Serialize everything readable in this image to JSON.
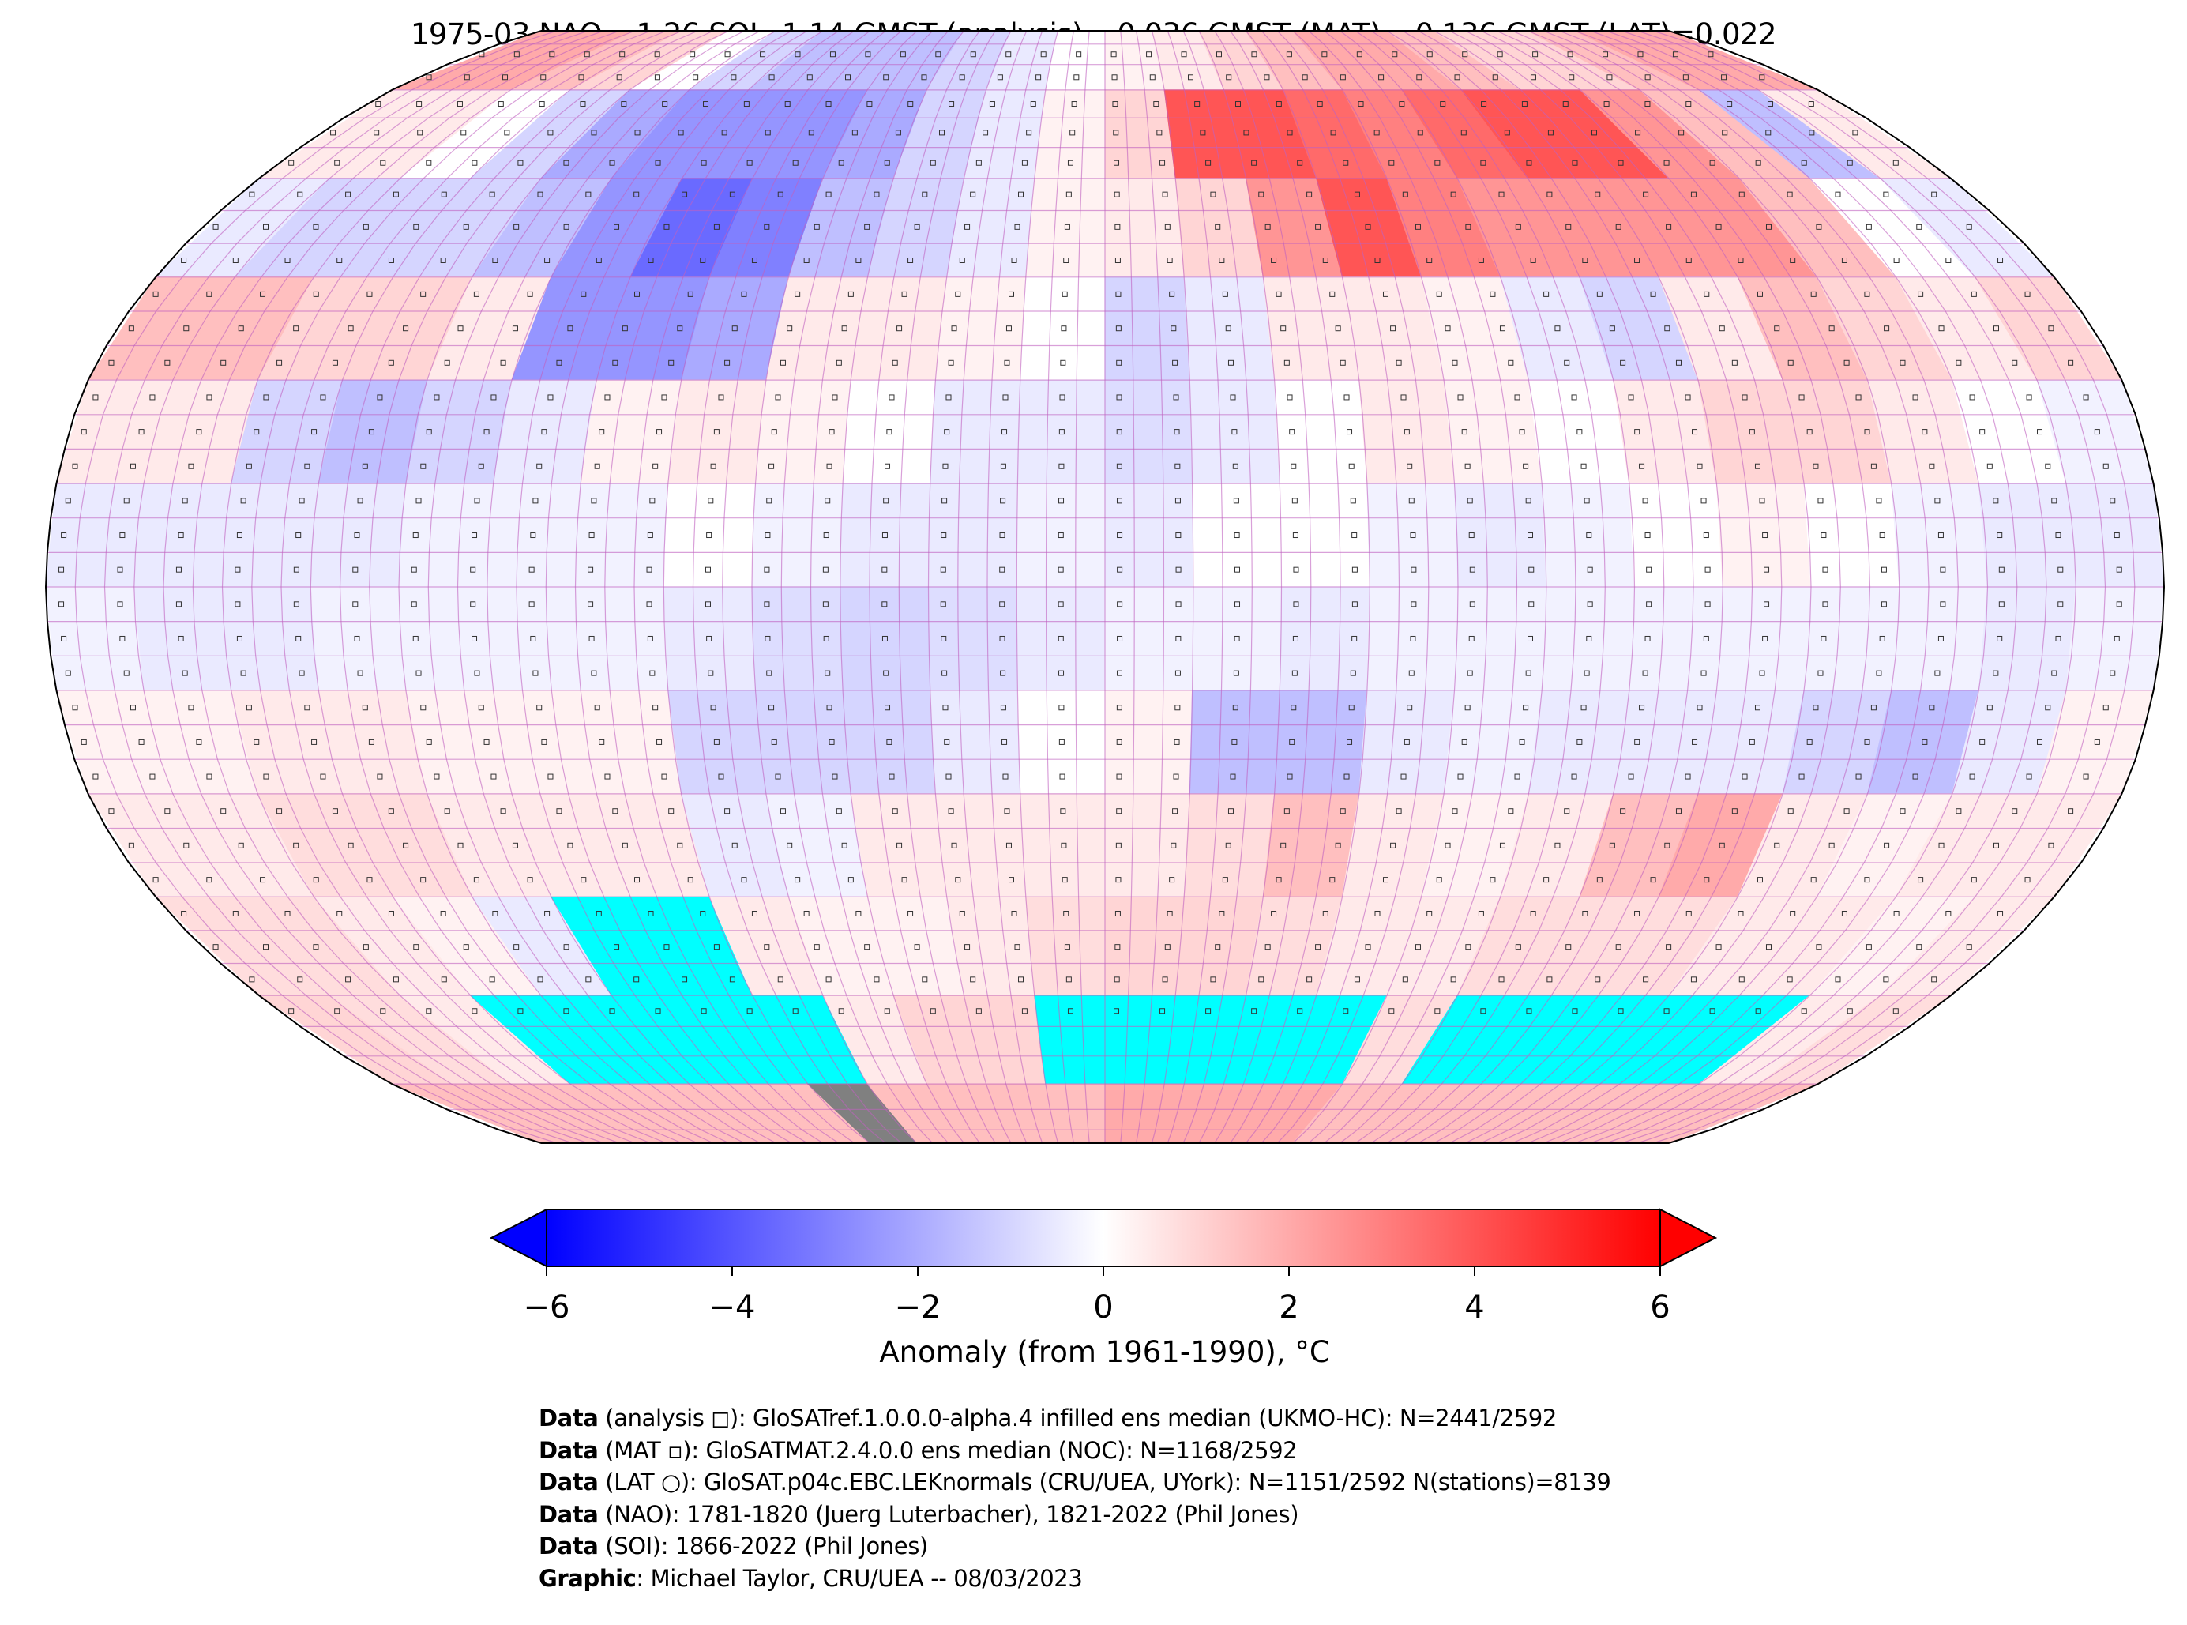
{
  "title": "1975-03 NAO=-1.26 SOI=1.14 GMST (analysis)=-0.036 GMST (MAT)=-0.136 GMST (LAT)=0.022",
  "chart_data": {
    "type": "heatmap",
    "projection": "Robinson",
    "title": "1975-03 NAO=-1.26 SOI=1.14 GMST (analysis)=-0.036 GMST (MAT)=-0.136 GMST (LAT)=0.022",
    "lat_bands": [
      [
        90,
        75
      ],
      [
        75,
        60
      ],
      [
        60,
        45
      ],
      [
        45,
        30
      ],
      [
        30,
        15
      ],
      [
        15,
        0
      ],
      [
        0,
        -15
      ],
      [
        -15,
        -30
      ],
      [
        -30,
        -45
      ],
      [
        -45,
        -60
      ],
      [
        -60,
        -75
      ],
      [
        -75,
        -90
      ]
    ],
    "lon_edges": [
      -180,
      -165,
      -150,
      -135,
      -120,
      -105,
      -90,
      -75,
      -60,
      -45,
      -30,
      -15,
      0,
      15,
      30,
      45,
      60,
      75,
      90,
      105,
      120,
      135,
      150,
      165,
      180
    ],
    "values": [
      [
        2,
        2,
        1.5,
        1,
        0,
        -1,
        -1.5,
        -1.5,
        -1.5,
        -1,
        -0.5,
        0,
        0.3,
        0.5,
        1,
        1.5,
        2,
        2,
        1.5,
        1,
        1,
        1.5,
        2,
        2
      ],
      [
        0.5,
        0.5,
        0,
        -1,
        -2,
        -2.5,
        -2.5,
        -2.5,
        -2,
        -1,
        -0.5,
        0.3,
        1,
        4,
        4,
        3.5,
        3,
        3.5,
        4,
        4,
        2.5,
        1.5,
        -1.5,
        0.5
      ],
      [
        -0.5,
        -1,
        -1,
        -1,
        -1.5,
        -2.5,
        -3.5,
        -3,
        -1.5,
        -1,
        -0.5,
        0.3,
        0.5,
        1,
        2.5,
        4,
        3,
        2.5,
        2.5,
        2.5,
        2.5,
        1.5,
        0,
        -0.5
      ],
      [
        1.5,
        1.5,
        1,
        1,
        0.5,
        -2.5,
        -2.5,
        -2,
        0.5,
        0.5,
        0.3,
        0,
        -1,
        -0.5,
        0.5,
        0.5,
        0.3,
        -0.5,
        -1,
        0.5,
        1.5,
        1,
        0.5,
        1
      ],
      [
        0.5,
        0.5,
        -1,
        -1.5,
        -1,
        -0.5,
        0.3,
        0.5,
        0.3,
        0,
        -0.5,
        -0.5,
        -0.8,
        -0.5,
        0,
        0.5,
        0.3,
        0,
        0.5,
        1,
        1,
        0.5,
        0,
        -0.3
      ],
      [
        -0.5,
        -0.5,
        -0.5,
        -0.5,
        -0.3,
        -0.3,
        -0.3,
        0,
        -0.3,
        -0.5,
        -0.5,
        -0.3,
        -0.5,
        0,
        0,
        -0.3,
        -0.5,
        -0.3,
        0,
        0.3,
        0,
        -0.3,
        -0.5,
        -0.5
      ],
      [
        -0.3,
        -0.5,
        -0.5,
        -0.3,
        -0.3,
        -0.3,
        -0.3,
        -0.5,
        -0.8,
        -1,
        -0.8,
        -0.5,
        -0.3,
        -0.3,
        -0.5,
        -0.3,
        -0.3,
        -0.3,
        -0.3,
        -0.3,
        -0.3,
        -0.3,
        -0.5,
        -0.3
      ],
      [
        0.3,
        0.3,
        0.5,
        0.5,
        0.3,
        0.3,
        0.3,
        -1,
        -1,
        -1,
        -0.5,
        0,
        0.3,
        -1.5,
        -1.5,
        -0.5,
        -0.3,
        -0.5,
        -0.5,
        -0.5,
        -1,
        -1.5,
        -0.5,
        0.3
      ],
      [
        0.5,
        0.5,
        0.8,
        0.8,
        0.5,
        0.5,
        0.5,
        -0.5,
        -0.3,
        0.5,
        0.5,
        0.5,
        0.5,
        0.8,
        1.5,
        0.5,
        0.3,
        0.5,
        1.5,
        2,
        0.5,
        0.3,
        0.5,
        0.5
      ],
      [
        0.8,
        0.8,
        0.5,
        0.3,
        -0.5,
        null,
        null,
        0.5,
        0.3,
        0.3,
        0.5,
        0.8,
        1,
        1,
        0.8,
        0.5,
        0.5,
        0.8,
        0.8,
        0.8,
        0.5,
        0.5,
        0.3,
        0.5
      ],
      [
        1,
        0.8,
        0.5,
        null,
        null,
        null,
        null,
        null,
        0.5,
        1,
        1,
        null,
        null,
        null,
        null,
        null,
        0.8,
        null,
        null,
        null,
        null,
        null,
        0.5,
        0.8
      ],
      [
        1.5,
        1.5,
        1.5,
        1.5,
        1.5,
        1.5,
        1.5,
        "gray",
        1.5,
        1.5,
        1.5,
        1.5,
        2,
        2,
        2,
        2,
        1.5,
        1.5,
        1.5,
        1.5,
        1.5,
        1.5,
        1.5,
        1.5
      ]
    ],
    "missing_color": "#00ffff",
    "masked_color": "#808080",
    "colorbar": {
      "label": "Anomaly (from 1961-1990), °C",
      "range": [
        -6,
        6
      ],
      "ticks": [
        "−6",
        "−4",
        "−2",
        "0",
        "2",
        "4",
        "6"
      ],
      "tick_values": [
        -6,
        -4,
        -2,
        0,
        2,
        4,
        6
      ],
      "extend": "both",
      "colormap": "bwr",
      "low_color": "#0000ff",
      "mid_color": "#ffffff",
      "high_color": "#ff0000"
    },
    "grid": "5°",
    "grid_color": "#c060c0"
  },
  "footer": [
    {
      "bold": "Data",
      "text": " (analysis ◻): GloSATref.1.0.0.0-alpha.4 infilled ens median (UKMO-HC): N=2441/2592"
    },
    {
      "bold": "Data",
      "text": " (MAT ▫): GloSATMAT.2.4.0.0 ens median (NOC): N=1168/2592"
    },
    {
      "bold": "Data",
      "text": " (LAT ○): GloSAT.p04c.EBC.LEKnormals (CRU/UEA, UYork): N=1151/2592 N(stations)=8139"
    },
    {
      "bold": "Data",
      "text": " (NAO): 1781-1820 (Juerg Luterbacher), 1821-2022 (Phil Jones)"
    },
    {
      "bold": "Data",
      "text": " (SOI): 1866-2022 (Phil Jones)"
    },
    {
      "bold": "Graphic",
      "text": ": Michael Taylor, CRU/UEA -- 08/03/2023"
    }
  ]
}
